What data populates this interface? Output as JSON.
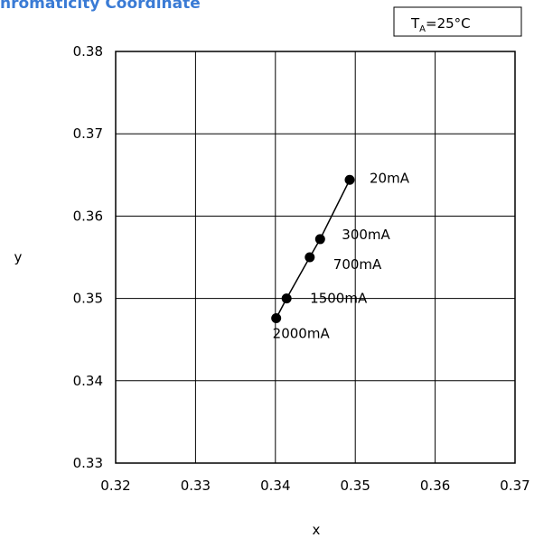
{
  "title": "hromaticity Coordinate",
  "condition": {
    "prefix": "T",
    "subscript": "A",
    "suffix": "=25°C"
  },
  "chart_data": {
    "type": "line",
    "title": "hromaticity Coordinate",
    "xlabel": "x",
    "ylabel": "y",
    "xlim": [
      0.32,
      0.37
    ],
    "ylim": [
      0.33,
      0.38
    ],
    "xticks": [
      "0.32",
      "0.33",
      "0.34",
      "0.35",
      "0.36",
      "0.37"
    ],
    "yticks": [
      "0.38",
      "0.37",
      "0.36",
      "0.35",
      "0.34",
      "0.33"
    ],
    "xtick_values": [
      0.32,
      0.33,
      0.34,
      0.35,
      0.36,
      0.37
    ],
    "ytick_values": [
      0.38,
      0.37,
      0.36,
      0.35,
      0.34,
      0.33
    ],
    "grid": true,
    "series": [
      {
        "points": [
          {
            "label": "20mA",
            "x": 0.3493,
            "y": 0.3644
          },
          {
            "label": "300mA",
            "x": 0.3456,
            "y": 0.3572
          },
          {
            "label": "700mA",
            "x": 0.3443,
            "y": 0.355
          },
          {
            "label": "1500mA",
            "x": 0.3414,
            "y": 0.35
          },
          {
            "label": "2000mA",
            "x": 0.3401,
            "y": 0.3476
          }
        ]
      }
    ],
    "colors": {
      "line": "#000000",
      "marker": "#000000",
      "grid": "#000000",
      "title": "#3a7bd5"
    }
  }
}
